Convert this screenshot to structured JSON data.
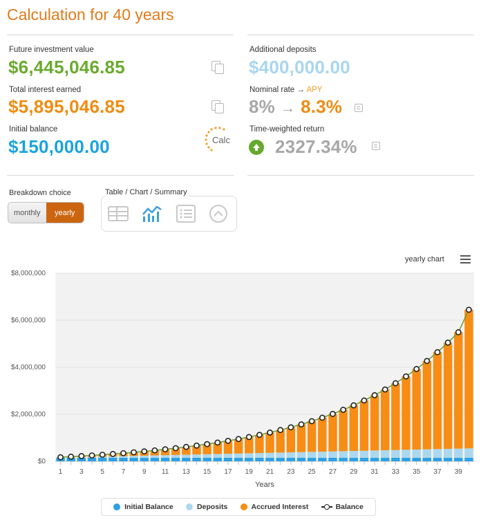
{
  "title": "Calculation for 40 years",
  "stats_left": [
    {
      "label": "Future investment value",
      "value": "$6,445,046.85",
      "color": "#6aaa2e"
    },
    {
      "label": "Total interest earned",
      "value": "$5,895,046.85",
      "color": "#f08c12"
    },
    {
      "label": "Initial balance",
      "value": "$150,000.00",
      "color": "#1aa3e0"
    }
  ],
  "stats_right": {
    "deposits_label": "Additional deposits",
    "deposits_value": "$400,000.00",
    "rate_label": "Nominal rate",
    "rate_arrow": "→",
    "rate_apy_label": "APY",
    "rate_nominal": "8%",
    "rate_apy": "8.3%",
    "twr_label": "Time-weighted return",
    "twr_value": "2327.34%"
  },
  "logo_text": "Calc",
  "breakdown": {
    "label": "Breakdown choice",
    "options": [
      "monthly",
      "yearly"
    ],
    "selected": "yearly"
  },
  "view": {
    "label": "Table / Chart / Summary",
    "icons": [
      "table-icon",
      "chart-icon",
      "summary-list-icon",
      "collapse-up-icon"
    ],
    "active": "chart-icon"
  },
  "chart_menu_label": "yearly chart",
  "chart_data": {
    "type": "bar",
    "xlabel": "Years",
    "ylabel": "",
    "ylim": [
      0,
      8000000
    ],
    "yticks": [
      "$0",
      "$2,000,000",
      "$4,000,000",
      "$6,000,000",
      "$8,000,000"
    ],
    "xtick_labels": [
      "1",
      "3",
      "5",
      "7",
      "9",
      "11",
      "13",
      "15",
      "17",
      "19",
      "21",
      "23",
      "25",
      "27",
      "29",
      "31",
      "33",
      "35",
      "37",
      "39"
    ],
    "categories": [
      1,
      2,
      3,
      4,
      5,
      6,
      7,
      8,
      9,
      10,
      11,
      12,
      13,
      14,
      15,
      16,
      17,
      18,
      19,
      20,
      21,
      22,
      23,
      24,
      25,
      26,
      27,
      28,
      29,
      30,
      31,
      32,
      33,
      34,
      35,
      36,
      37,
      38,
      39,
      40
    ],
    "series": [
      {
        "name": "Initial Balance",
        "color": "#2ea0e4",
        "values": [
          150000,
          150000,
          150000,
          150000,
          150000,
          150000,
          150000,
          150000,
          150000,
          150000,
          150000,
          150000,
          150000,
          150000,
          150000,
          150000,
          150000,
          150000,
          150000,
          150000,
          150000,
          150000,
          150000,
          150000,
          150000,
          150000,
          150000,
          150000,
          150000,
          150000,
          150000,
          150000,
          150000,
          150000,
          150000,
          150000,
          150000,
          150000,
          150000,
          150000
        ]
      },
      {
        "name": "Deposits",
        "color": "#acd8ee",
        "values": [
          10000,
          20000,
          30000,
          40000,
          50000,
          60000,
          70000,
          80000,
          90000,
          100000,
          110000,
          120000,
          130000,
          140000,
          150000,
          160000,
          170000,
          180000,
          190000,
          200000,
          210000,
          220000,
          230000,
          240000,
          250000,
          260000,
          270000,
          280000,
          290000,
          300000,
          310000,
          320000,
          330000,
          340000,
          350000,
          360000,
          370000,
          380000,
          390000,
          400000
        ]
      },
      {
        "name": "Accrued Interest",
        "color": "#f78d14",
        "values": [
          13000,
          27000,
          43000,
          61000,
          80000,
          102000,
          126000,
          153000,
          182000,
          214000,
          250000,
          289000,
          332000,
          379000,
          431000,
          488000,
          550000,
          618000,
          692000,
          773000,
          862000,
          959000,
          1065000,
          1180000,
          1306000,
          1444000,
          1595000,
          1760000,
          1940000,
          2136000,
          2351000,
          2585000,
          2841000,
          3120000,
          3425000,
          3757000,
          4120000,
          4516000,
          4948000,
          5895047
        ]
      },
      {
        "name": "Balance",
        "color": "#222222",
        "values": [
          173000,
          197000,
          223000,
          251000,
          280000,
          312000,
          346000,
          383000,
          422000,
          464000,
          510000,
          559000,
          612000,
          669000,
          731000,
          798000,
          870000,
          948000,
          1032000,
          1123000,
          1222000,
          1329000,
          1445000,
          1570000,
          1706000,
          1854000,
          2015000,
          2190000,
          2380000,
          2586000,
          2811000,
          3055000,
          3321000,
          3610000,
          3925000,
          4267000,
          4640000,
          5046000,
          5488000,
          6445047
        ]
      }
    ]
  }
}
